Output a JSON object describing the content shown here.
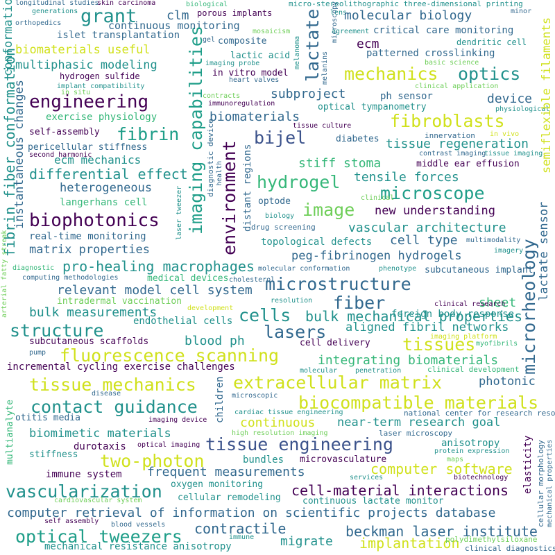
{
  "palette": {
    "dark_purple": "#440154",
    "indigo": "#3b528b",
    "blue": "#31688e",
    "teal": "#21918c",
    "cyan": "#1f9e89",
    "green": "#35b779",
    "lime": "#6ece58",
    "yellow": "#d0e11c"
  },
  "words": [
    {
      "text": "longitudinal studies",
      "color": "blue"
    },
    {
      "text": "skin carcinoma",
      "color": "dark_purple"
    },
    {
      "text": "biological",
      "color": "green"
    },
    {
      "text": "micro-stereolithographic three-dimensional printing",
      "color": "teal"
    },
    {
      "text": "lens",
      "color": "teal"
    },
    {
      "text": "minor",
      "color": "blue"
    },
    {
      "text": "generations",
      "color": "teal"
    },
    {
      "text": "orthopedics",
      "color": "blue"
    },
    {
      "text": "grant",
      "color": "teal"
    },
    {
      "text": "clm",
      "color": "blue"
    },
    {
      "text": "porous implants",
      "color": "dark_purple"
    },
    {
      "text": "continuous monitoring",
      "color": "blue"
    },
    {
      "text": "islet transplantation",
      "color": "blue"
    },
    {
      "text": "mosaicism",
      "color": "lime"
    },
    {
      "text": "agreement",
      "color": "teal"
    },
    {
      "text": "critical care monitoring",
      "color": "blue"
    },
    {
      "text": "molecular biology",
      "color": "blue"
    },
    {
      "text": "gel",
      "color": "blue"
    },
    {
      "text": "composite",
      "color": "blue"
    },
    {
      "text": "ecm",
      "color": "dark_purple"
    },
    {
      "text": "dendritic cell",
      "color": "teal"
    },
    {
      "text": "patterned crosslinking",
      "color": "blue"
    },
    {
      "text": "biomaterials useful",
      "color": "yellow"
    },
    {
      "text": "lactic acid",
      "color": "teal"
    },
    {
      "text": "basic science",
      "color": "lime"
    },
    {
      "text": "multiphasic modeling",
      "color": "teal"
    },
    {
      "text": "imaging probe",
      "color": "teal"
    },
    {
      "text": "in vitro model",
      "color": "dark_purple"
    },
    {
      "text": "mechanics",
      "color": "yellow"
    },
    {
      "text": "optics",
      "color": "teal"
    },
    {
      "text": "hydrogen sulfide",
      "color": "dark_purple"
    },
    {
      "text": "heart valves",
      "color": "blue"
    },
    {
      "text": "implant compatibility",
      "color": "teal"
    },
    {
      "text": "in situ",
      "color": "lime"
    },
    {
      "text": "clinical application",
      "color": "lime"
    },
    {
      "text": "engineering",
      "color": "dark_purple"
    },
    {
      "text": "subproject",
      "color": "blue"
    },
    {
      "text": "ph sensor",
      "color": "blue"
    },
    {
      "text": "device",
      "color": "blue"
    },
    {
      "text": "contracts",
      "color": "lime"
    },
    {
      "text": "immunoregulation",
      "color": "dark_purple"
    },
    {
      "text": "optical tympanometry",
      "color": "teal"
    },
    {
      "text": "physiological",
      "color": "teal"
    },
    {
      "text": "exercise physiology",
      "color": "green"
    },
    {
      "text": "fibroblasts",
      "color": "yellow"
    },
    {
      "text": "biomaterials",
      "color": "blue"
    },
    {
      "text": "tissue culture",
      "color": "dark_purple"
    },
    {
      "text": "fibrin",
      "color": "cyan"
    },
    {
      "text": "bijel",
      "color": "indigo"
    },
    {
      "text": "self-assembly",
      "color": "dark_purple"
    },
    {
      "text": "tissue regeneration",
      "color": "teal"
    },
    {
      "text": "innervation",
      "color": "blue"
    },
    {
      "text": "pericellular stiffness",
      "color": "blue"
    },
    {
      "text": "diabetes",
      "color": "blue"
    },
    {
      "text": "in vivo",
      "color": "yellow"
    },
    {
      "text": "second harmonic",
      "color": "dark_purple"
    },
    {
      "text": "contrast imaging",
      "color": "blue"
    },
    {
      "text": "tissue imaging",
      "color": "teal"
    },
    {
      "text": "ecm mechanics",
      "color": "teal"
    },
    {
      "text": "stiff stoma",
      "color": "green"
    },
    {
      "text": "middle ear effusion",
      "color": "dark_purple"
    },
    {
      "text": "differential effect",
      "color": "teal"
    },
    {
      "text": "hydrogel",
      "color": "green"
    },
    {
      "text": "tensile forces",
      "color": "teal"
    },
    {
      "text": "heterogeneous",
      "color": "blue"
    },
    {
      "text": "microscope",
      "color": "cyan"
    },
    {
      "text": "langerhans cell",
      "color": "green"
    },
    {
      "text": "image",
      "color": "lime"
    },
    {
      "text": "new understanding",
      "color": "dark_purple"
    },
    {
      "text": "optode",
      "color": "blue"
    },
    {
      "text": "clinical",
      "color": "lime"
    },
    {
      "text": "biology",
      "color": "teal"
    },
    {
      "text": "biophotonics",
      "color": "dark_purple"
    },
    {
      "text": "drug screening",
      "color": "blue"
    },
    {
      "text": "vascular architecture",
      "color": "teal"
    },
    {
      "text": "real-time monitoring",
      "color": "blue"
    },
    {
      "text": "topological defects",
      "color": "teal"
    },
    {
      "text": "cell type",
      "color": "blue"
    },
    {
      "text": "multimodality",
      "color": "blue"
    },
    {
      "text": "matrix properties",
      "color": "blue"
    },
    {
      "text": "peg-fibrinogen hydrogels",
      "color": "blue"
    },
    {
      "text": "imagery",
      "color": "teal"
    },
    {
      "text": "pro-healing macrophages",
      "color": "teal"
    },
    {
      "text": "diagnostic",
      "color": "green"
    },
    {
      "text": "molecular conformation",
      "color": "blue"
    },
    {
      "text": "phenotype",
      "color": "teal"
    },
    {
      "text": "subcutaneous implant",
      "color": "blue"
    },
    {
      "text": "computing methodologies",
      "color": "blue"
    },
    {
      "text": "medical devices",
      "color": "green"
    },
    {
      "text": "cholesterol",
      "color": "blue"
    },
    {
      "text": "microstructure",
      "color": "blue"
    },
    {
      "text": "relevant model cell system",
      "color": "blue"
    },
    {
      "text": "sheet",
      "color": "green"
    },
    {
      "text": "intradermal vaccination",
      "color": "lime"
    },
    {
      "text": "resolution",
      "color": "teal"
    },
    {
      "text": "clinical research",
      "color": "dark_purple"
    },
    {
      "text": "fiber",
      "color": "blue"
    },
    {
      "text": "bulk measurements",
      "color": "teal"
    },
    {
      "text": "development",
      "color": "yellow"
    },
    {
      "text": "foreign body response",
      "color": "teal"
    },
    {
      "text": "endothelial cells",
      "color": "teal"
    },
    {
      "text": "cells",
      "color": "teal"
    },
    {
      "text": "bulk mechanical properties",
      "color": "teal"
    },
    {
      "text": "structure",
      "color": "teal"
    },
    {
      "text": "lasers",
      "color": "blue"
    },
    {
      "text": "aligned fibril networks",
      "color": "teal"
    },
    {
      "text": "blood ph",
      "color": "teal"
    },
    {
      "text": "imaging platform",
      "color": "yellow"
    },
    {
      "text": "subcutaneous scaffolds",
      "color": "dark_purple"
    },
    {
      "text": "cell delivery",
      "color": "dark_purple"
    },
    {
      "text": "tissues",
      "color": "yellow"
    },
    {
      "text": "myofibrils",
      "color": "green"
    },
    {
      "text": "pump",
      "color": "blue"
    },
    {
      "text": "fluorescence scanning",
      "color": "yellow"
    },
    {
      "text": "integrating biomaterials",
      "color": "green"
    },
    {
      "text": "clinical development",
      "color": "green"
    },
    {
      "text": "incremental cycling exercise challenges",
      "color": "dark_purple"
    },
    {
      "text": "molecular",
      "color": "teal"
    },
    {
      "text": "penetration",
      "color": "teal"
    },
    {
      "text": "tissue mechanics",
      "color": "yellow"
    },
    {
      "text": "extracellular matrix",
      "color": "yellow"
    },
    {
      "text": "photonic",
      "color": "blue"
    },
    {
      "text": "disease",
      "color": "blue"
    },
    {
      "text": "microscopic",
      "color": "blue"
    },
    {
      "text": "contact guidance",
      "color": "teal"
    },
    {
      "text": "biocompatible materials",
      "color": "yellow"
    },
    {
      "text": "cardiac tissue engineering",
      "color": "teal"
    },
    {
      "text": "national center for research resources",
      "color": "blue"
    },
    {
      "text": "otitis media",
      "color": "blue"
    },
    {
      "text": "continuous",
      "color": "yellow"
    },
    {
      "text": "near-term research goal",
      "color": "teal"
    },
    {
      "text": "imaging device",
      "color": "dark_purple"
    },
    {
      "text": "high resolution imaging",
      "color": "lime"
    },
    {
      "text": "laser microscopy",
      "color": "blue"
    },
    {
      "text": "biomimetic materials",
      "color": "teal"
    },
    {
      "text": "tissue engineering",
      "color": "indigo"
    },
    {
      "text": "durotaxis",
      "color": "dark_purple"
    },
    {
      "text": "optical imaging",
      "color": "dark_purple"
    },
    {
      "text": "anisotropy",
      "color": "teal"
    },
    {
      "text": "stiffness",
      "color": "teal"
    },
    {
      "text": "two-photon",
      "color": "yellow"
    },
    {
      "text": "bundles",
      "color": "teal"
    },
    {
      "text": "microvasculature",
      "color": "dark_purple"
    },
    {
      "text": "protein expression",
      "color": "teal"
    },
    {
      "text": "maps",
      "color": "lime"
    },
    {
      "text": "immune system",
      "color": "dark_purple"
    },
    {
      "text": "frequent measurements",
      "color": "blue"
    },
    {
      "text": "computer software",
      "color": "yellow"
    },
    {
      "text": "oxygen monitoring",
      "color": "teal"
    },
    {
      "text": "services",
      "color": "teal"
    },
    {
      "text": "biotechnology",
      "color": "dark_purple"
    },
    {
      "text": "vascularization",
      "color": "teal"
    },
    {
      "text": "cell-material interactions",
      "color": "dark_purple"
    },
    {
      "text": "cardiovascular system",
      "color": "lime"
    },
    {
      "text": "cellular remodeling",
      "color": "teal"
    },
    {
      "text": "continuous lactate monitor",
      "color": "teal"
    },
    {
      "text": "computer retrieval of information on scientific projects database",
      "color": "blue"
    },
    {
      "text": "self assembly",
      "color": "dark_purple"
    },
    {
      "text": "blood vessels",
      "color": "blue"
    },
    {
      "text": "optical tweezers",
      "color": "cyan"
    },
    {
      "text": "contractile",
      "color": "blue"
    },
    {
      "text": "beckman laser institute",
      "color": "blue"
    },
    {
      "text": "immune",
      "color": "teal"
    },
    {
      "text": "migrate",
      "color": "teal"
    },
    {
      "text": "implantation",
      "color": "yellow"
    },
    {
      "text": "polydimethylsiloxane",
      "color": "lime"
    },
    {
      "text": "mechanical resistance anisotropy",
      "color": "teal"
    },
    {
      "text": "clinical diagnostics",
      "color": "blue"
    },
    {
      "text": "conformation",
      "color": "teal"
    },
    {
      "text": "fibrin fiber conformation",
      "color": "teal"
    },
    {
      "text": "instantaneous changes",
      "color": "blue"
    },
    {
      "text": "lactate",
      "color": "blue"
    },
    {
      "text": "imaging capabilities",
      "color": "cyan"
    },
    {
      "text": "environment",
      "color": "dark_purple"
    },
    {
      "text": "distant regions",
      "color": "blue"
    },
    {
      "text": "diagnostic device",
      "color": "blue"
    },
    {
      "text": "health",
      "color": "blue"
    },
    {
      "text": "melanoma",
      "color": "teal"
    },
    {
      "text": "melanins",
      "color": "blue"
    },
    {
      "text": "microscopy",
      "color": "blue"
    },
    {
      "text": "laser tweezer",
      "color": "teal"
    },
    {
      "text": "semiflexible filaments",
      "color": "yellow"
    },
    {
      "text": "microrheology",
      "color": "blue"
    },
    {
      "text": "lactate sensor",
      "color": "blue"
    },
    {
      "text": "arterial fatty streak",
      "color": "lime"
    },
    {
      "text": "multianalyte",
      "color": "green"
    },
    {
      "text": "children",
      "color": "blue"
    },
    {
      "text": "elasticity",
      "color": "dark_purple"
    },
    {
      "text": "cellular morphology",
      "color": "blue"
    },
    {
      "text": "mechanical properties",
      "color": "blue"
    }
  ]
}
